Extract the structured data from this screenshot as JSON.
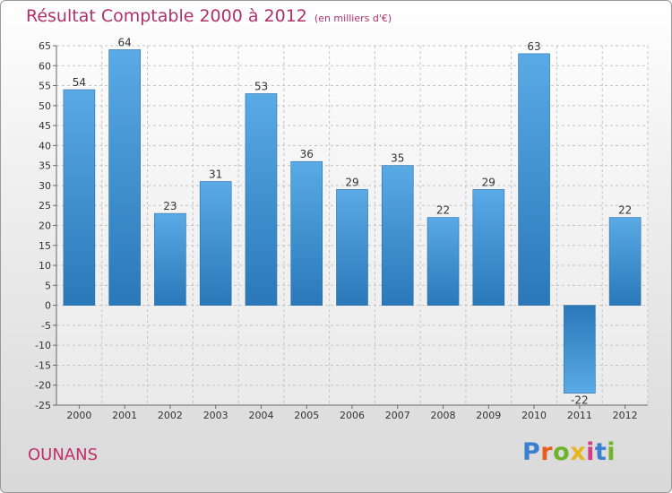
{
  "header": {
    "title": "Résultat Comptable 2000 à 2012",
    "unit": "(en milliers d'€)"
  },
  "footer": {
    "commune": "OUNANS",
    "brand_letters": [
      "P",
      "r",
      "o",
      "x",
      "i",
      "t",
      "i"
    ],
    "brand_colors": [
      "#3a7fd0",
      "#e85d1f",
      "#6fb22c",
      "#e8b51f",
      "#d83a8a",
      "#3a7fd0",
      "#6fb22c"
    ]
  },
  "chart_data": {
    "type": "bar",
    "title": "Résultat Comptable 2000 à 2012",
    "subtitle": "(en milliers d'€)",
    "xlabel": "",
    "ylabel": "",
    "categories": [
      "2000",
      "2001",
      "2002",
      "2003",
      "2004",
      "2005",
      "2006",
      "2007",
      "2008",
      "2009",
      "2010",
      "2011",
      "2012"
    ],
    "values": [
      54,
      64,
      23,
      31,
      53,
      36,
      29,
      35,
      22,
      29,
      63,
      -22,
      22
    ],
    "ylim": [
      -25,
      65
    ],
    "yticks": [
      -25,
      -20,
      -15,
      -10,
      -5,
      0,
      5,
      10,
      15,
      20,
      25,
      30,
      35,
      40,
      45,
      50,
      55,
      60,
      65
    ],
    "grid": true,
    "bar_color_top": "#5aaae6",
    "bar_color_bottom": "#2a78b8"
  }
}
